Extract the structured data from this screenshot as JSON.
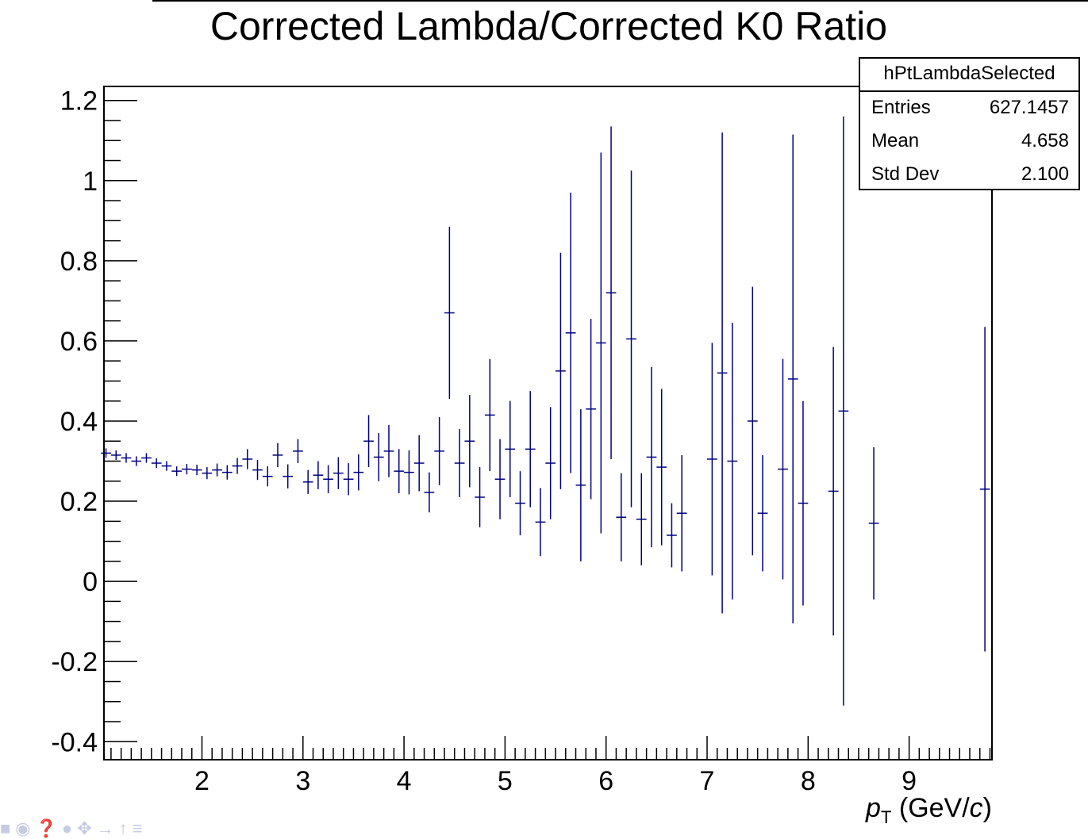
{
  "chart_data": {
    "type": "scatter",
    "title": "Corrected Lambda/Corrected K0 Ratio",
    "xlabel_main": "p",
    "xlabel_sub": "T",
    "xlabel_unit_pre": " (GeV/",
    "xlabel_unit_it": "c",
    "xlabel_unit_post": ")",
    "ylabel": "",
    "xlim": [
      1.03,
      9.82
    ],
    "ylim": [
      -0.445,
      1.235
    ],
    "xticks": [
      2,
      3,
      4,
      5,
      6,
      7,
      8,
      9
    ],
    "yticks": [
      -0.4,
      -0.2,
      0,
      0.2,
      0.4,
      0.6,
      0.8,
      1,
      1.2
    ],
    "ytick_labels": [
      "-0.4",
      "-0.2",
      "0",
      "0.2",
      "0.4",
      "0.6",
      "0.8",
      "1",
      "1.2"
    ],
    "bin_width": 0.1,
    "series": [
      {
        "color": "#000080",
        "x": [
          1.05,
          1.15,
          1.25,
          1.35,
          1.45,
          1.55,
          1.65,
          1.75,
          1.85,
          1.95,
          2.05,
          2.15,
          2.25,
          2.35,
          2.45,
          2.55,
          2.65,
          2.75,
          2.85,
          2.95,
          3.05,
          3.15,
          3.25,
          3.35,
          3.45,
          3.55,
          3.65,
          3.75,
          3.85,
          3.95,
          4.05,
          4.15,
          4.25,
          4.35,
          4.45,
          4.55,
          4.65,
          4.75,
          4.85,
          4.95,
          5.05,
          5.15,
          5.25,
          5.35,
          5.45,
          5.55,
          5.65,
          5.75,
          5.85,
          5.95,
          6.05,
          6.15,
          6.25,
          6.35,
          6.45,
          6.55,
          6.65,
          6.75,
          7.05,
          7.15,
          7.25,
          7.45,
          7.55,
          7.75,
          7.85,
          7.95,
          8.25,
          8.35,
          8.65,
          9.75
        ],
        "y": [
          0.32,
          0.315,
          0.308,
          0.3,
          0.308,
          0.295,
          0.288,
          0.275,
          0.28,
          0.278,
          0.27,
          0.278,
          0.272,
          0.288,
          0.305,
          0.278,
          0.262,
          0.315,
          0.262,
          0.325,
          0.248,
          0.265,
          0.255,
          0.27,
          0.255,
          0.272,
          0.35,
          0.31,
          0.325,
          0.275,
          0.272,
          0.295,
          0.222,
          0.325,
          0.67,
          0.295,
          0.35,
          0.21,
          0.415,
          0.255,
          0.33,
          0.195,
          0.33,
          0.148,
          0.295,
          0.525,
          0.62,
          0.24,
          0.43,
          0.595,
          0.72,
          0.16,
          0.605,
          0.155,
          0.31,
          0.285,
          0.115,
          0.17,
          0.305,
          0.52,
          0.3,
          0.4,
          0.17,
          0.28,
          0.505,
          0.195,
          0.225,
          0.425,
          0.145,
          0.23
        ],
        "yerr": [
          0.012,
          0.012,
          0.012,
          0.012,
          0.012,
          0.012,
          0.012,
          0.012,
          0.013,
          0.013,
          0.015,
          0.016,
          0.018,
          0.02,
          0.025,
          0.025,
          0.025,
          0.03,
          0.03,
          0.03,
          0.03,
          0.035,
          0.035,
          0.04,
          0.04,
          0.045,
          0.065,
          0.06,
          0.065,
          0.055,
          0.055,
          0.07,
          0.05,
          0.085,
          0.215,
          0.085,
          0.115,
          0.075,
          0.14,
          0.1,
          0.12,
          0.08,
          0.145,
          0.085,
          0.14,
          0.295,
          0.35,
          0.19,
          0.225,
          0.475,
          0.415,
          0.11,
          0.42,
          0.115,
          0.225,
          0.195,
          0.08,
          0.145,
          0.29,
          0.6,
          0.345,
          0.335,
          0.145,
          0.275,
          0.61,
          0.255,
          0.36,
          0.735,
          0.19,
          0.405
        ]
      }
    ]
  },
  "stats_box": {
    "name": "hPtLambdaSelected",
    "rows": [
      {
        "label": "Entries",
        "value": "627.1457"
      },
      {
        "label": "Mean",
        "value": "4.658"
      },
      {
        "label": "Std Dev",
        "value": "2.100"
      }
    ]
  },
  "toolbar": {
    "icons": [
      "square-icon",
      "camera-icon",
      "help-icon",
      "dot-icon",
      "move-icon",
      "arrow-right-icon",
      "arrow-up-icon",
      "menu-icon"
    ]
  }
}
